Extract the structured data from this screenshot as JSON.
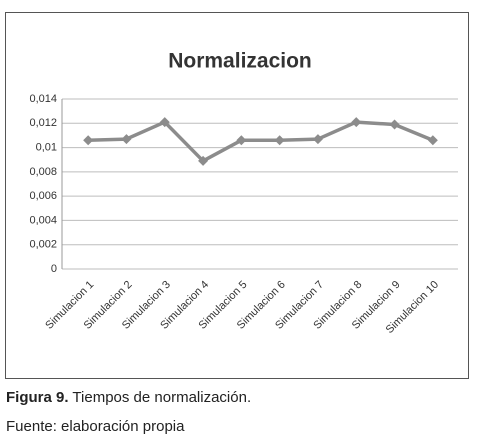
{
  "chart_data": {
    "type": "line",
    "title": "Normalizacion",
    "categories": [
      "Simulacion 1",
      "Simulacion 2",
      "Simulacion 3",
      "Simulacion 4",
      "Simulacion 5",
      "Simulacion 6",
      "Simulacion 7",
      "Simulacion 8",
      "Simulacion 9",
      "Simulacion 10"
    ],
    "series": [
      {
        "name": "Normalizacion",
        "color": "#8c8c8c",
        "values": [
          0.0106,
          0.0107,
          0.0121,
          0.0089,
          0.0106,
          0.0106,
          0.0107,
          0.0121,
          0.0119,
          0.0106
        ]
      }
    ],
    "ylim": [
      0,
      0.014
    ],
    "yticks": [
      0,
      {
        "value": 0.002,
        "label": "0,002"
      },
      {
        "value": 0.004,
        "label": "0,004"
      },
      {
        "value": 0.006,
        "label": "0,006"
      },
      {
        "value": 0.008,
        "label": "0,008"
      },
      {
        "value": 0.01,
        "label": "0,01"
      },
      {
        "value": 0.012,
        "label": "0,012"
      },
      {
        "value": 0.014,
        "label": "0,014"
      }
    ],
    "grid": true,
    "legend": false
  },
  "caption": {
    "label": "Figura 9.",
    "text": "Tiempos de normalización."
  },
  "source": "Fuente: elaboración propia"
}
